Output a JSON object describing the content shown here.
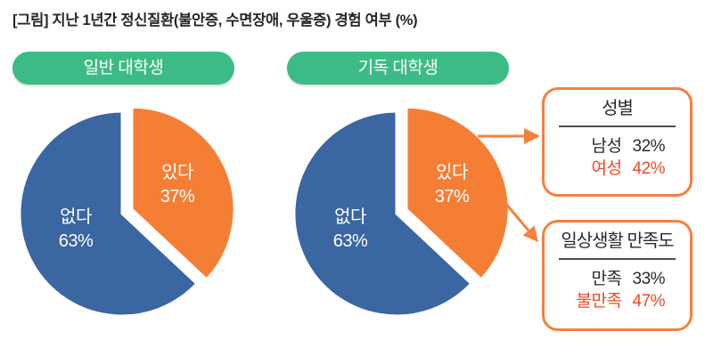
{
  "title": "[그림] 지난 1년간 정신질환(불안증, 수면장애, 우울증) 경험 여부 (%)",
  "colors": {
    "pie_yes_orange": "#f57e35",
    "pie_no_blue": "#3a66a1",
    "badge_green": "#3dbb86",
    "highlight_red": "#ed4b26",
    "callout_border_orange": "#f5813c",
    "divider_gray": "#4d4d4d",
    "text_dark": "#2b2b2b"
  },
  "chart_data": [
    {
      "type": "pie",
      "title": "일반 대학생",
      "categories": [
        "있다",
        "없다"
      ],
      "values": [
        37,
        63
      ],
      "value_labels": [
        "37%",
        "63%"
      ],
      "unit": "%",
      "start_angle_deg": 0,
      "clockwise": true,
      "exploded_slice": "있다",
      "slice_colors": [
        "#f57e35",
        "#3a66a1"
      ]
    },
    {
      "type": "pie",
      "title": "기독 대학생",
      "categories": [
        "있다",
        "없다"
      ],
      "values": [
        37,
        63
      ],
      "value_labels": [
        "37%",
        "63%"
      ],
      "unit": "%",
      "start_angle_deg": 0,
      "clockwise": true,
      "exploded_slice": "있다",
      "slice_colors": [
        "#f57e35",
        "#3a66a1"
      ]
    }
  ],
  "callouts": [
    {
      "title": "성별",
      "rows": [
        {
          "label": "남성",
          "value": "32%"
        },
        {
          "label": "여성",
          "value": "42%"
        }
      ]
    },
    {
      "title": "일상생활 만족도",
      "rows": [
        {
          "label": "만족",
          "value": "33%"
        },
        {
          "label": "불만족",
          "value": "47%"
        }
      ]
    }
  ]
}
